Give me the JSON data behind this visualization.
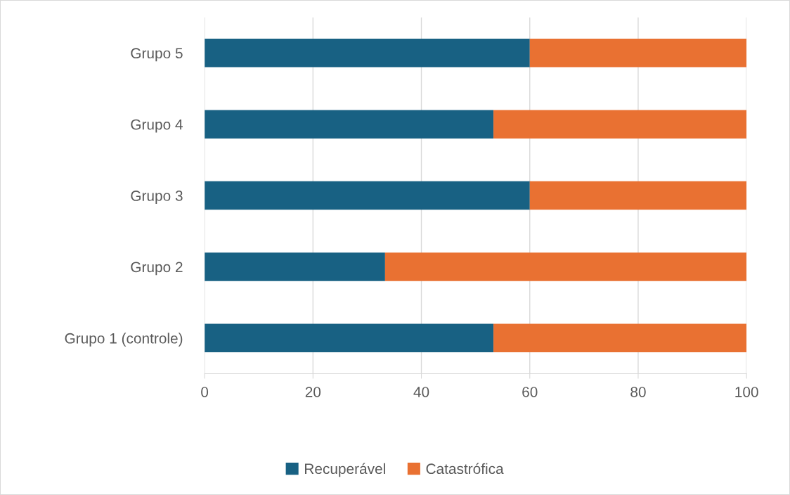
{
  "chart_data": {
    "type": "bar",
    "orientation": "horizontal",
    "stacked": true,
    "categories": [
      "Grupo 5",
      "Grupo 4",
      "Grupo 3",
      "Grupo 2",
      "Grupo 1 (controle)"
    ],
    "series": [
      {
        "name": "Recuperável",
        "color": "#186183",
        "values": [
          60,
          53.3,
          60,
          33.3,
          53.3
        ]
      },
      {
        "name": "Catastrófica",
        "color": "#e97132",
        "values": [
          40,
          46.7,
          40,
          66.7,
          46.7
        ]
      }
    ],
    "xlim": [
      0,
      100
    ],
    "xticks": [
      0,
      20,
      40,
      60,
      80,
      100
    ],
    "grid": "x",
    "legend": "bottom"
  }
}
